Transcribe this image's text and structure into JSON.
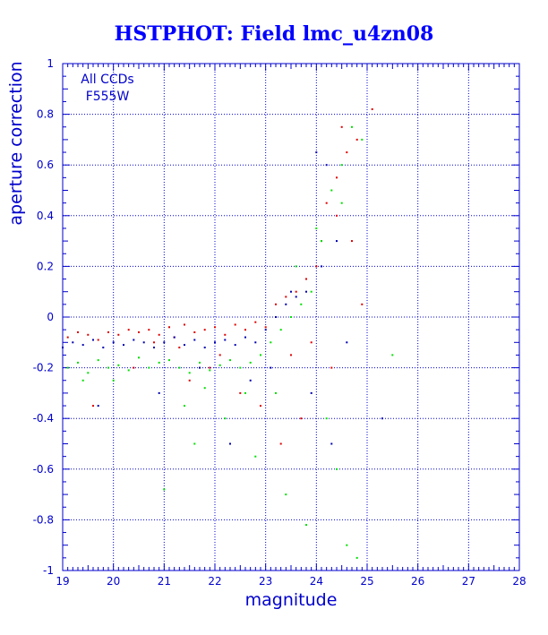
{
  "chart_data": {
    "type": "scatter",
    "title": "HSTPHOT: Field lmc_u4zn08",
    "xlabel": "magnitude",
    "ylabel": "aperture correction",
    "annotation_lines": [
      "All CCDs",
      "F555W"
    ],
    "xlim": [
      19,
      28
    ],
    "ylim": [
      -1,
      1
    ],
    "x_ticks": [
      "19",
      "20",
      "21",
      "22",
      "23",
      "24",
      "25",
      "26",
      "27",
      "28"
    ],
    "y_ticks": [
      "-1",
      "-0.8",
      "-0.6",
      "-0.4",
      "-0.2",
      "0",
      "0.2",
      "0.4",
      "0.6",
      "0.8",
      "1"
    ],
    "grid": true,
    "colors": {
      "axes": "#0000cc",
      "grid": "#0000cc",
      "title": "#0000ff",
      "background": "#ffffff"
    },
    "series": [
      {
        "color": "#e00000",
        "x": [
          19.1,
          19.3,
          19.5,
          19.7,
          19.9,
          20.1,
          20.3,
          20.5,
          20.7,
          20.9,
          21.1,
          21.2,
          21.4,
          21.6,
          21.8,
          22.0,
          22.2,
          22.4,
          22.6,
          22.8,
          23.0,
          23.2,
          23.4,
          23.6,
          23.8,
          24.0,
          24.1,
          24.2,
          24.4,
          24.5,
          24.6,
          24.8,
          25.1,
          24.3,
          23.9,
          23.5,
          22.5,
          21.5,
          20.4,
          19.6,
          24.7,
          24.9,
          23.7,
          23.3,
          22.9,
          22.1,
          21.9,
          21.3,
          20.8,
          24.4
        ],
        "y": [
          -0.08,
          -0.06,
          -0.07,
          -0.09,
          -0.06,
          -0.07,
          -0.05,
          -0.06,
          -0.05,
          -0.07,
          -0.04,
          -0.08,
          -0.03,
          -0.06,
          -0.05,
          -0.04,
          -0.07,
          -0.03,
          -0.05,
          -0.02,
          -0.04,
          0.05,
          0.08,
          0.1,
          0.15,
          0.2,
          0.3,
          0.45,
          0.55,
          0.75,
          0.65,
          0.7,
          0.82,
          -0.2,
          -0.1,
          -0.15,
          -0.3,
          -0.25,
          -0.2,
          -0.35,
          0.3,
          0.05,
          -0.4,
          -0.5,
          -0.35,
          -0.15,
          -0.2,
          -0.12,
          -0.1,
          0.4
        ]
      },
      {
        "color": "#0000b0",
        "x": [
          19.0,
          19.2,
          19.4,
          19.6,
          19.8,
          20.0,
          20.2,
          20.4,
          20.6,
          20.8,
          21.0,
          21.2,
          21.4,
          21.6,
          21.8,
          22.0,
          22.2,
          22.4,
          22.6,
          22.8,
          23.0,
          23.2,
          23.4,
          23.6,
          23.8,
          24.0,
          24.2,
          24.4,
          24.6,
          25.3,
          24.3,
          23.9,
          23.1,
          22.3,
          21.7,
          20.9,
          19.7,
          23.5,
          24.1,
          22.7
        ],
        "y": [
          -0.12,
          -0.1,
          -0.11,
          -0.09,
          -0.12,
          -0.1,
          -0.11,
          -0.09,
          -0.1,
          -0.12,
          -0.1,
          -0.08,
          -0.11,
          -0.09,
          -0.12,
          -0.1,
          -0.09,
          -0.11,
          -0.08,
          -0.1,
          -0.05,
          0.0,
          0.05,
          0.08,
          0.1,
          0.65,
          0.6,
          0.3,
          -0.1,
          -0.4,
          -0.5,
          -0.3,
          -0.2,
          -0.5,
          -0.2,
          -0.3,
          -0.35,
          0.1,
          0.2,
          -0.25
        ]
      },
      {
        "color": "#00e000",
        "x": [
          19.1,
          19.3,
          19.5,
          19.7,
          19.9,
          20.1,
          20.3,
          20.5,
          20.7,
          20.9,
          21.1,
          21.3,
          21.5,
          21.7,
          21.9,
          22.1,
          22.3,
          22.5,
          22.7,
          22.9,
          23.1,
          23.3,
          23.5,
          23.7,
          23.9,
          24.1,
          24.3,
          24.5,
          24.7,
          24.9,
          25.5,
          24.2,
          24.4,
          23.8,
          23.4,
          22.8,
          22.2,
          21.6,
          21.0,
          20.0,
          24.6,
          24.8,
          23.2,
          21.4,
          19.4,
          24.0,
          23.6,
          22.6,
          21.8,
          24.5
        ],
        "y": [
          -0.2,
          -0.18,
          -0.22,
          -0.17,
          -0.2,
          -0.19,
          -0.21,
          -0.16,
          -0.2,
          -0.18,
          -0.17,
          -0.2,
          -0.22,
          -0.18,
          -0.21,
          -0.19,
          -0.17,
          -0.2,
          -0.18,
          -0.15,
          -0.1,
          -0.05,
          0.0,
          0.05,
          0.1,
          0.3,
          0.5,
          0.6,
          0.75,
          0.7,
          -0.15,
          -0.4,
          -0.6,
          -0.82,
          -0.7,
          -0.55,
          -0.4,
          -0.5,
          -0.68,
          -0.25,
          -0.9,
          -0.95,
          -0.3,
          -0.35,
          -0.25,
          0.35,
          0.2,
          -0.3,
          -0.28,
          0.45
        ]
      }
    ]
  }
}
